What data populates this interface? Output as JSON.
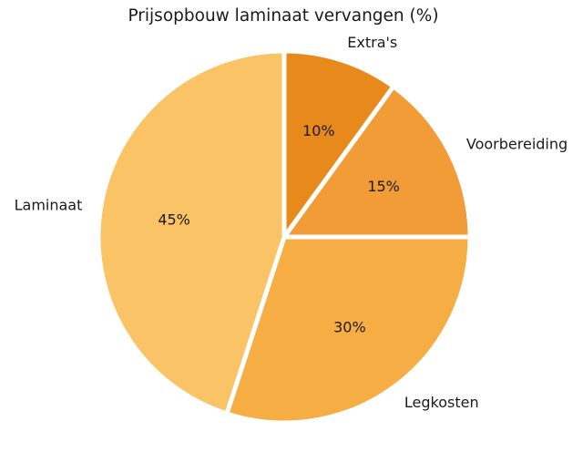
{
  "figure": {
    "background_color": "#ffffff"
  },
  "chart_data": {
    "type": "pie",
    "title": "Prijsopbouw laminaat vervangen (%)",
    "categories": [
      "Extra's",
      "Voorbereiding",
      "Legkosten",
      "Laminaat"
    ],
    "values": [
      10,
      15,
      30,
      45
    ],
    "pct_labels": [
      "10%",
      "15%",
      "30%",
      "45%"
    ],
    "slice_ids": [
      "extras",
      "voorbereiding",
      "legkosten",
      "laminaat"
    ],
    "colors": [
      "#e8891c",
      "#f19c36",
      "#f6ae44",
      "#fac366"
    ],
    "text_color": "#1a1a1a",
    "edge_color": "#ffffff",
    "start_angle": 90,
    "clockwise": true,
    "label_distance": 1.1,
    "pct_distance": 0.6,
    "legend": "none",
    "units": "%"
  }
}
